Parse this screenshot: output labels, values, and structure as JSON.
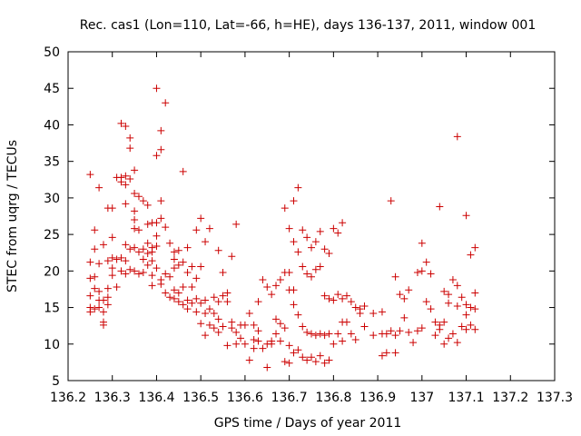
{
  "chart_data": {
    "type": "scatter",
    "title": "Rec. cas1 (Lon=110, Lat=-66, h=HE), days 136-137, 2011, window 001",
    "xlabel": "GPS time / Days of year 2011",
    "ylabel": "STEC from uqrg / TECUs",
    "xlim": [
      136.2,
      137.3
    ],
    "ylim": [
      5,
      50
    ],
    "xticks": [
      136.2,
      136.3,
      136.4,
      136.5,
      136.6,
      136.7,
      136.8,
      136.9,
      137.0,
      137.1,
      137.2,
      137.3
    ],
    "xtick_labels": [
      "136.2",
      "136.3",
      "136.4",
      "136.5",
      "136.6",
      "136.7",
      "136.8",
      "136.9",
      "137",
      "137.1",
      "137.2",
      "137.3"
    ],
    "yticks": [
      5,
      10,
      15,
      20,
      25,
      30,
      35,
      40,
      45,
      50
    ],
    "ytick_labels": [
      "5",
      "10",
      "15",
      "20",
      "25",
      "30",
      "35",
      "40",
      "45",
      "50"
    ],
    "grid": false,
    "marker": "+",
    "marker_color": "#cc0000",
    "series": [
      {
        "points": [
          [
            136.25,
            33.2
          ],
          [
            136.25,
            21.2
          ],
          [
            136.25,
            19.0
          ],
          [
            136.25,
            16.6
          ],
          [
            136.25,
            15.0
          ],
          [
            136.25,
            14.4
          ],
          [
            136.26,
            25.6
          ],
          [
            136.26,
            23.0
          ],
          [
            136.26,
            19.2
          ],
          [
            136.26,
            17.6
          ],
          [
            136.26,
            14.8
          ],
          [
            136.27,
            31.4
          ],
          [
            136.27,
            21.0
          ],
          [
            136.27,
            17.2
          ],
          [
            136.27,
            16.0
          ],
          [
            136.27,
            15.0
          ],
          [
            136.28,
            23.6
          ],
          [
            136.28,
            16.0
          ],
          [
            136.28,
            14.4
          ],
          [
            136.28,
            13.0
          ],
          [
            136.28,
            12.6
          ],
          [
            136.29,
            28.6
          ],
          [
            136.29,
            21.4
          ],
          [
            136.29,
            17.6
          ],
          [
            136.29,
            16.4
          ],
          [
            136.29,
            15.4
          ],
          [
            136.3,
            28.6
          ],
          [
            136.3,
            24.6
          ],
          [
            136.3,
            21.8
          ],
          [
            136.3,
            20.4
          ],
          [
            136.3,
            19.4
          ],
          [
            136.31,
            32.8
          ],
          [
            136.31,
            21.6
          ],
          [
            136.31,
            17.8
          ],
          [
            136.32,
            40.2
          ],
          [
            136.32,
            32.8
          ],
          [
            136.32,
            32.2
          ],
          [
            136.32,
            21.8
          ],
          [
            136.32,
            20.0
          ],
          [
            136.33,
            39.8
          ],
          [
            136.33,
            33.0
          ],
          [
            136.33,
            31.8
          ],
          [
            136.33,
            29.2
          ],
          [
            136.33,
            23.6
          ],
          [
            136.33,
            21.4
          ],
          [
            136.33,
            19.6
          ],
          [
            136.34,
            38.2
          ],
          [
            136.34,
            36.8
          ],
          [
            136.34,
            32.6
          ],
          [
            136.34,
            23.0
          ],
          [
            136.34,
            20.2
          ],
          [
            136.35,
            33.8
          ],
          [
            136.35,
            30.6
          ],
          [
            136.35,
            28.2
          ],
          [
            136.35,
            27.0
          ],
          [
            136.35,
            25.8
          ],
          [
            136.35,
            23.2
          ],
          [
            136.35,
            20.0
          ],
          [
            136.36,
            30.2
          ],
          [
            136.36,
            25.6
          ],
          [
            136.36,
            22.6
          ],
          [
            136.36,
            19.6
          ],
          [
            136.37,
            29.6
          ],
          [
            136.37,
            23.0
          ],
          [
            136.37,
            21.6
          ],
          [
            136.37,
            19.8
          ],
          [
            136.38,
            29.0
          ],
          [
            136.38,
            26.4
          ],
          [
            136.38,
            23.8
          ],
          [
            136.38,
            22.4
          ],
          [
            136.38,
            20.8
          ],
          [
            136.39,
            26.6
          ],
          [
            136.39,
            23.2
          ],
          [
            136.39,
            22.6
          ],
          [
            136.39,
            21.4
          ],
          [
            136.39,
            19.4
          ],
          [
            136.39,
            18.0
          ],
          [
            136.4,
            45.0
          ],
          [
            136.4,
            35.8
          ],
          [
            136.4,
            26.6
          ],
          [
            136.4,
            24.8
          ],
          [
            136.4,
            23.4
          ],
          [
            136.4,
            20.4
          ],
          [
            136.41,
            39.2
          ],
          [
            136.41,
            36.6
          ],
          [
            136.41,
            29.6
          ],
          [
            136.41,
            27.2
          ],
          [
            136.41,
            18.8
          ],
          [
            136.41,
            18.2
          ],
          [
            136.42,
            43.0
          ],
          [
            136.42,
            26.0
          ],
          [
            136.42,
            19.6
          ],
          [
            136.42,
            17.0
          ],
          [
            136.43,
            23.8
          ],
          [
            136.43,
            19.2
          ],
          [
            136.43,
            16.4
          ],
          [
            136.44,
            22.6
          ],
          [
            136.44,
            21.6
          ],
          [
            136.44,
            20.4
          ],
          [
            136.44,
            17.4
          ],
          [
            136.44,
            16.2
          ],
          [
            136.45,
            22.8
          ],
          [
            136.45,
            20.8
          ],
          [
            136.45,
            17.0
          ],
          [
            136.45,
            15.8
          ],
          [
            136.46,
            33.6
          ],
          [
            136.46,
            21.2
          ],
          [
            136.46,
            17.8
          ],
          [
            136.46,
            15.4
          ],
          [
            136.47,
            23.2
          ],
          [
            136.47,
            19.8
          ],
          [
            136.47,
            16.0
          ],
          [
            136.47,
            14.8
          ],
          [
            136.48,
            20.6
          ],
          [
            136.48,
            17.8
          ],
          [
            136.48,
            15.6
          ],
          [
            136.49,
            25.6
          ],
          [
            136.49,
            19.0
          ],
          [
            136.49,
            16.2
          ],
          [
            136.49,
            14.4
          ],
          [
            136.5,
            27.2
          ],
          [
            136.5,
            20.6
          ],
          [
            136.5,
            15.6
          ],
          [
            136.5,
            12.8
          ],
          [
            136.51,
            24.0
          ],
          [
            136.51,
            16.0
          ],
          [
            136.51,
            14.2
          ],
          [
            136.51,
            11.2
          ],
          [
            136.52,
            25.8
          ],
          [
            136.52,
            14.8
          ],
          [
            136.52,
            12.6
          ],
          [
            136.53,
            16.4
          ],
          [
            136.53,
            14.2
          ],
          [
            136.53,
            12.2
          ],
          [
            136.54,
            22.8
          ],
          [
            136.54,
            15.8
          ],
          [
            136.54,
            13.4
          ],
          [
            136.54,
            11.6
          ],
          [
            136.55,
            19.8
          ],
          [
            136.55,
            16.6
          ],
          [
            136.55,
            12.4
          ],
          [
            136.56,
            17.0
          ],
          [
            136.56,
            15.8
          ],
          [
            136.56,
            9.8
          ],
          [
            136.57,
            22.0
          ],
          [
            136.57,
            13.0
          ],
          [
            136.57,
            12.2
          ],
          [
            136.58,
            26.4
          ],
          [
            136.58,
            11.6
          ],
          [
            136.58,
            10.0
          ],
          [
            136.59,
            12.6
          ],
          [
            136.59,
            10.8
          ],
          [
            136.6,
            12.6
          ],
          [
            136.6,
            10.0
          ],
          [
            136.61,
            14.2
          ],
          [
            136.61,
            7.8
          ],
          [
            136.62,
            12.6
          ],
          [
            136.62,
            10.6
          ],
          [
            136.62,
            9.4
          ],
          [
            136.63,
            15.8
          ],
          [
            136.63,
            11.8
          ],
          [
            136.63,
            10.4
          ],
          [
            136.64,
            18.8
          ],
          [
            136.64,
            9.4
          ],
          [
            136.65,
            17.8
          ],
          [
            136.65,
            10.0
          ],
          [
            136.65,
            6.8
          ],
          [
            136.66,
            16.8
          ],
          [
            136.66,
            10.4
          ],
          [
            136.66,
            10.0
          ],
          [
            136.67,
            18.0
          ],
          [
            136.67,
            13.4
          ],
          [
            136.67,
            11.4
          ],
          [
            136.68,
            18.8
          ],
          [
            136.68,
            12.8
          ],
          [
            136.68,
            10.4
          ],
          [
            136.69,
            28.6
          ],
          [
            136.69,
            19.8
          ],
          [
            136.69,
            12.2
          ],
          [
            136.69,
            7.6
          ],
          [
            136.7,
            25.8
          ],
          [
            136.7,
            19.8
          ],
          [
            136.7,
            17.4
          ],
          [
            136.7,
            9.8
          ],
          [
            136.7,
            7.4
          ],
          [
            136.71,
            29.6
          ],
          [
            136.71,
            24.0
          ],
          [
            136.71,
            17.4
          ],
          [
            136.71,
            15.4
          ],
          [
            136.71,
            8.8
          ],
          [
            136.72,
            31.4
          ],
          [
            136.72,
            22.6
          ],
          [
            136.72,
            14.0
          ],
          [
            136.72,
            9.2
          ],
          [
            136.73,
            25.6
          ],
          [
            136.73,
            20.6
          ],
          [
            136.73,
            12.4
          ],
          [
            136.73,
            8.2
          ],
          [
            136.74,
            24.6
          ],
          [
            136.74,
            19.6
          ],
          [
            136.74,
            11.6
          ],
          [
            136.74,
            7.8
          ],
          [
            136.75,
            23.2
          ],
          [
            136.75,
            19.2
          ],
          [
            136.75,
            11.4
          ],
          [
            136.75,
            8.2
          ],
          [
            136.76,
            24.0
          ],
          [
            136.76,
            20.2
          ],
          [
            136.76,
            11.2
          ],
          [
            136.76,
            7.6
          ],
          [
            136.77,
            25.4
          ],
          [
            136.77,
            20.6
          ],
          [
            136.77,
            11.4
          ],
          [
            136.77,
            8.4
          ],
          [
            136.78,
            23.0
          ],
          [
            136.78,
            16.6
          ],
          [
            136.78,
            11.2
          ],
          [
            136.78,
            7.4
          ],
          [
            136.79,
            22.4
          ],
          [
            136.79,
            16.2
          ],
          [
            136.79,
            11.4
          ],
          [
            136.79,
            7.8
          ],
          [
            136.8,
            25.8
          ],
          [
            136.8,
            16.0
          ],
          [
            136.8,
            10.0
          ],
          [
            136.81,
            25.2
          ],
          [
            136.81,
            16.8
          ],
          [
            136.81,
            11.4
          ],
          [
            136.82,
            26.6
          ],
          [
            136.82,
            16.2
          ],
          [
            136.82,
            13.0
          ],
          [
            136.82,
            10.4
          ],
          [
            136.83,
            16.6
          ],
          [
            136.83,
            13.0
          ],
          [
            136.84,
            15.8
          ],
          [
            136.84,
            11.4
          ],
          [
            136.85,
            15.0
          ],
          [
            136.85,
            10.6
          ],
          [
            136.86,
            14.8
          ],
          [
            136.86,
            14.2
          ],
          [
            136.87,
            15.2
          ],
          [
            136.87,
            12.4
          ],
          [
            136.89,
            14.2
          ],
          [
            136.89,
            11.2
          ],
          [
            136.91,
            14.4
          ],
          [
            136.91,
            11.4
          ],
          [
            136.91,
            8.4
          ],
          [
            136.92,
            11.4
          ],
          [
            136.92,
            8.8
          ],
          [
            136.93,
            29.6
          ],
          [
            136.93,
            11.8
          ],
          [
            136.94,
            19.2
          ],
          [
            136.94,
            11.2
          ],
          [
            136.94,
            8.8
          ],
          [
            136.95,
            16.8
          ],
          [
            136.95,
            11.8
          ],
          [
            136.96,
            16.2
          ],
          [
            136.96,
            13.6
          ],
          [
            136.97,
            17.4
          ],
          [
            136.97,
            11.6
          ],
          [
            136.98,
            10.2
          ],
          [
            136.99,
            19.8
          ],
          [
            136.99,
            11.8
          ],
          [
            137.0,
            23.8
          ],
          [
            137.0,
            20.0
          ],
          [
            137.0,
            12.2
          ],
          [
            137.01,
            21.2
          ],
          [
            137.01,
            15.8
          ],
          [
            137.02,
            19.6
          ],
          [
            137.02,
            14.8
          ],
          [
            137.03,
            13.0
          ],
          [
            137.03,
            11.2
          ],
          [
            137.04,
            28.8
          ],
          [
            137.04,
            12.6
          ],
          [
            137.04,
            12.0
          ],
          [
            137.05,
            17.2
          ],
          [
            137.05,
            13.0
          ],
          [
            137.05,
            10.0
          ],
          [
            137.06,
            16.8
          ],
          [
            137.06,
            15.6
          ],
          [
            137.06,
            10.8
          ],
          [
            137.07,
            18.8
          ],
          [
            137.07,
            11.4
          ],
          [
            137.08,
            38.4
          ],
          [
            137.08,
            18.0
          ],
          [
            137.08,
            15.2
          ],
          [
            137.08,
            10.2
          ],
          [
            137.09,
            16.4
          ],
          [
            137.09,
            12.4
          ],
          [
            137.1,
            27.6
          ],
          [
            137.1,
            15.4
          ],
          [
            137.1,
            14.0
          ],
          [
            137.1,
            12.0
          ],
          [
            137.11,
            22.2
          ],
          [
            137.11,
            15.0
          ],
          [
            137.11,
            12.6
          ],
          [
            137.12,
            23.2
          ],
          [
            137.12,
            17.0
          ],
          [
            137.12,
            14.8
          ],
          [
            137.12,
            12.0
          ]
        ]
      }
    ]
  }
}
